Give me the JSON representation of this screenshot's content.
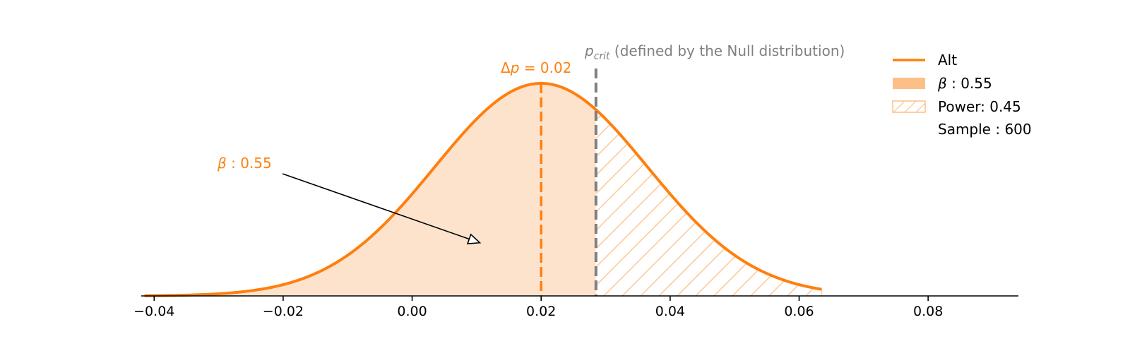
{
  "chart_data": {
    "type": "area",
    "title": "",
    "xlabel": "",
    "ylabel": "",
    "xlim": [
      -0.042,
      0.094
    ],
    "xticks": [
      -0.04,
      -0.02,
      0.0,
      0.02,
      0.04,
      0.06,
      0.08
    ],
    "xtick_labels": [
      "−0.04",
      "−0.02",
      "0.00",
      "0.02",
      "0.04",
      "0.06",
      "0.08"
    ],
    "grid": false,
    "legend_position": "top-right",
    "series": [
      {
        "name": "Alt",
        "distribution": "normal",
        "mean": 0.02,
        "std": 0.0165,
        "x_range": [
          -0.0415,
          0.0635
        ],
        "color": "#ff7f0e"
      }
    ],
    "regions": [
      {
        "name": "beta",
        "x_range": [
          -0.0415,
          0.0285
        ],
        "style": "filled",
        "value": 0.55
      },
      {
        "name": "power",
        "x_range": [
          0.0285,
          0.0635
        ],
        "style": "hatched",
        "value": 0.45
      }
    ],
    "vlines": [
      {
        "name": "delta_p",
        "x": 0.02,
        "color": "#ff7f0e",
        "style": "dashed"
      },
      {
        "name": "p_crit",
        "x": 0.0285,
        "color": "#808080",
        "style": "dashed"
      }
    ],
    "annotations": {
      "delta_p": {
        "prefix": "Δ",
        "var": "p",
        "text": " = 0.02"
      },
      "p_crit": {
        "var": "p",
        "sub": "crit",
        "text": " (defined by the Null distribution)"
      },
      "beta": {
        "var": "β",
        "text": " :  0.55",
        "arrow_target_x": 0.0105,
        "arrow_target_y_frac": 0.25
      }
    },
    "legend": [
      {
        "name": "Alt",
        "kind": "line",
        "label": "Alt"
      },
      {
        "name": "beta",
        "kind": "filled",
        "var": "β",
        "label": " :  0.55"
      },
      {
        "name": "power",
        "kind": "hatched",
        "label": "Power:  0.45"
      },
      {
        "name": "sample",
        "kind": "none",
        "label": "Sample : 600"
      }
    ],
    "colors": {
      "main": "#ff7f0e",
      "fill": "#fde3cc",
      "legend_fill": "#fdbf88",
      "hatch": "#fdcb9d",
      "crit": "#808080"
    }
  }
}
